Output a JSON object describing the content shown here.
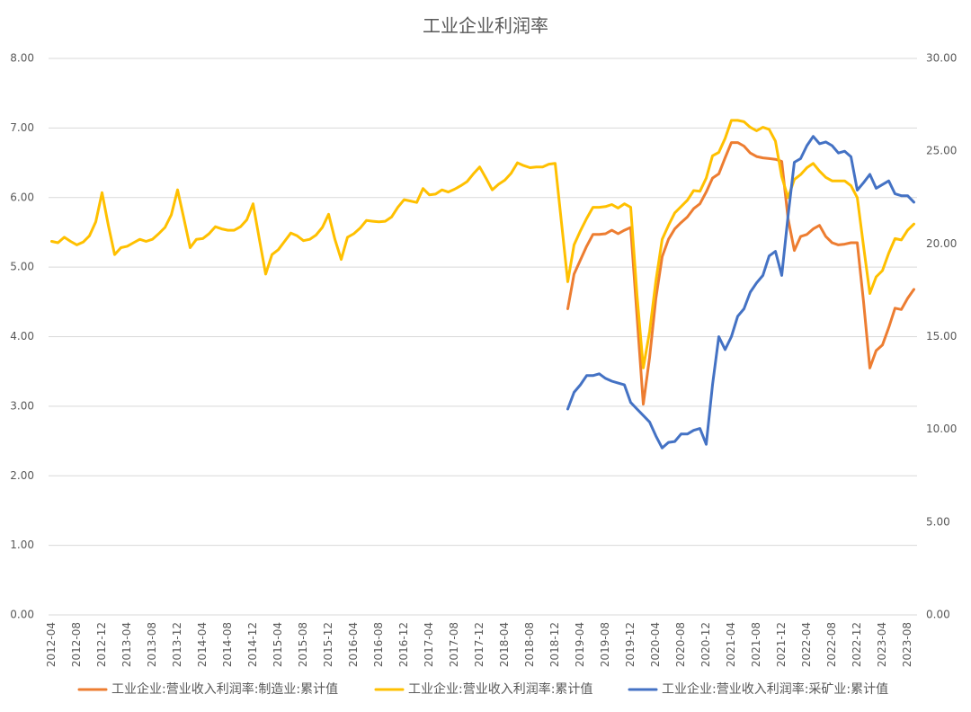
{
  "chart_data": {
    "type": "line",
    "title": "工业企业利润率",
    "categories": [
      "2012-04",
      null,
      null,
      null,
      "2012-08",
      null,
      null,
      null,
      "2012-12",
      null,
      null,
      null,
      "2013-04",
      null,
      null,
      null,
      "2013-08",
      null,
      null,
      null,
      "2013-12",
      null,
      null,
      null,
      "2014-04",
      null,
      null,
      null,
      "2014-08",
      null,
      null,
      null,
      "2014-12",
      null,
      null,
      null,
      "2015-04",
      null,
      null,
      null,
      "2015-08",
      null,
      null,
      null,
      "2015-12",
      null,
      null,
      null,
      "2016-04",
      null,
      null,
      null,
      "2016-08",
      null,
      null,
      null,
      "2016-12",
      null,
      null,
      null,
      "2017-04",
      null,
      null,
      null,
      "2017-08",
      null,
      null,
      null,
      "2017-12",
      null,
      null,
      null,
      "2018-04",
      null,
      null,
      null,
      "2018-08",
      null,
      null,
      null,
      "2018-12",
      null,
      null,
      null,
      "2019-04",
      null,
      null,
      null,
      "2019-08",
      null,
      null,
      null,
      "2019-12",
      null,
      null,
      null,
      "2020-04",
      null,
      null,
      null,
      "2020-08",
      null,
      null,
      null,
      "2020-12",
      null,
      null,
      null,
      "2021-04",
      null,
      null,
      null,
      "2021-08",
      null,
      null,
      null,
      "2021-12",
      null,
      null,
      null,
      "2022-04",
      null,
      null,
      null,
      "2022-08",
      null,
      null,
      null,
      "2022-12",
      null,
      null,
      null,
      "2023-04",
      null,
      null,
      null,
      "2023-08",
      null
    ],
    "series": [
      {
        "name": "工业企业:营业收入利润率:制造业:累计值",
        "color": "#ED7D31",
        "axis": "y",
        "values": [
          null,
          null,
          null,
          null,
          null,
          null,
          null,
          null,
          null,
          null,
          null,
          null,
          null,
          null,
          null,
          null,
          null,
          null,
          null,
          null,
          null,
          null,
          null,
          null,
          null,
          null,
          null,
          null,
          null,
          null,
          null,
          null,
          null,
          null,
          null,
          null,
          null,
          null,
          null,
          null,
          null,
          null,
          null,
          null,
          null,
          null,
          null,
          null,
          null,
          null,
          null,
          null,
          null,
          null,
          null,
          null,
          null,
          null,
          null,
          null,
          null,
          null,
          null,
          null,
          null,
          null,
          null,
          null,
          null,
          null,
          null,
          null,
          null,
          null,
          null,
          null,
          null,
          null,
          null,
          null,
          null,
          null,
          4.4,
          4.9,
          5.1,
          5.3,
          5.47,
          5.47,
          5.48,
          5.53,
          5.48,
          5.53,
          5.57,
          4.3,
          3.03,
          3.7,
          4.55,
          5.15,
          5.4,
          5.55,
          5.64,
          5.72,
          5.84,
          5.91,
          6.08,
          6.28,
          6.34,
          6.57,
          6.79,
          6.79,
          6.74,
          6.64,
          6.59,
          6.57,
          6.56,
          6.55,
          6.52,
          5.7,
          5.24,
          5.44,
          5.47,
          5.55,
          5.6,
          5.44,
          5.35,
          5.32,
          5.33,
          5.35,
          5.35,
          4.5,
          3.55,
          3.8,
          3.88,
          4.13,
          4.41,
          4.39,
          4.55,
          4.68
        ]
      },
      {
        "name": "工业企业:营业收入利润率:累计值",
        "color": "#FFC000",
        "axis": "y",
        "values": [
          5.37,
          5.35,
          5.43,
          5.37,
          5.32,
          5.36,
          5.45,
          5.65,
          6.07,
          5.6,
          5.18,
          5.28,
          5.3,
          5.35,
          5.4,
          5.37,
          5.4,
          5.48,
          5.57,
          5.75,
          6.11,
          5.7,
          5.28,
          5.4,
          5.41,
          5.48,
          5.58,
          5.55,
          5.53,
          5.53,
          5.58,
          5.68,
          5.91,
          5.4,
          4.9,
          5.18,
          5.25,
          5.37,
          5.49,
          5.45,
          5.38,
          5.4,
          5.46,
          5.57,
          5.76,
          5.4,
          5.11,
          5.43,
          5.48,
          5.56,
          5.67,
          5.66,
          5.65,
          5.66,
          5.72,
          5.86,
          5.97,
          5.95,
          5.93,
          6.13,
          6.04,
          6.05,
          6.11,
          6.08,
          6.12,
          6.17,
          6.23,
          6.34,
          6.44,
          6.28,
          6.11,
          6.19,
          6.25,
          6.35,
          6.5,
          6.46,
          6.43,
          6.44,
          6.44,
          6.48,
          6.49,
          5.64,
          4.79,
          5.32,
          5.52,
          5.7,
          5.86,
          5.86,
          5.87,
          5.9,
          5.85,
          5.91,
          5.86,
          4.6,
          3.55,
          4.07,
          4.8,
          5.4,
          5.6,
          5.78,
          5.87,
          5.96,
          6.1,
          6.09,
          6.28,
          6.6,
          6.65,
          6.85,
          7.11,
          7.11,
          7.09,
          7.01,
          6.96,
          7.01,
          6.98,
          6.81,
          6.3,
          6.0,
          6.26,
          6.33,
          6.43,
          6.49,
          6.38,
          6.29,
          6.24,
          6.24,
          6.24,
          6.17,
          6.0,
          5.3,
          4.62,
          4.86,
          4.95,
          5.2,
          5.41,
          5.39,
          5.53,
          5.62
        ]
      },
      {
        "name": "工业企业:营业收入利润率:采矿业:累计值",
        "color": "#4472C4",
        "axis": "y2",
        "values": [
          null,
          null,
          null,
          null,
          null,
          null,
          null,
          null,
          null,
          null,
          null,
          null,
          null,
          null,
          null,
          null,
          null,
          null,
          null,
          null,
          null,
          null,
          null,
          null,
          null,
          null,
          null,
          null,
          null,
          null,
          null,
          null,
          null,
          null,
          null,
          null,
          null,
          null,
          null,
          null,
          null,
          null,
          null,
          null,
          null,
          null,
          null,
          null,
          null,
          null,
          null,
          null,
          null,
          null,
          null,
          null,
          null,
          null,
          null,
          null,
          null,
          null,
          null,
          null,
          null,
          null,
          null,
          null,
          null,
          null,
          null,
          null,
          null,
          null,
          null,
          null,
          null,
          null,
          null,
          null,
          null,
          null,
          11.1,
          12.0,
          12.4,
          12.9,
          12.9,
          13.0,
          12.75,
          12.6,
          12.5,
          12.4,
          11.45,
          11.1,
          10.75,
          10.4,
          9.65,
          9.0,
          9.3,
          9.35,
          9.75,
          9.75,
          9.95,
          10.05,
          9.2,
          12.4,
          15.0,
          14.3,
          15.0,
          16.1,
          16.5,
          17.4,
          17.9,
          18.3,
          19.35,
          19.6,
          18.3,
          21.5,
          24.4,
          24.6,
          25.3,
          25.8,
          25.4,
          25.5,
          25.3,
          24.9,
          25.0,
          24.7,
          22.9,
          23.3,
          23.75,
          23.0,
          23.2,
          23.4,
          22.7,
          22.6,
          22.6,
          22.25
        ]
      }
    ],
    "ylim": [
      0,
      8
    ],
    "yticks": [
      {
        "value": 0,
        "label": "0.00"
      },
      {
        "value": 1,
        "label": "1.00"
      },
      {
        "value": 2,
        "label": "2.00"
      },
      {
        "value": 3,
        "label": "3.00"
      },
      {
        "value": 4,
        "label": "4.00"
      },
      {
        "value": 5,
        "label": "5.00"
      },
      {
        "value": 6,
        "label": "6.00"
      },
      {
        "value": 7,
        "label": "7.00"
      },
      {
        "value": 8,
        "label": "8.00"
      }
    ],
    "y2lim": [
      0,
      30
    ],
    "y2ticks": [
      {
        "value": 0,
        "label": "0.00"
      },
      {
        "value": 5,
        "label": "5.00"
      },
      {
        "value": 10,
        "label": "10.00"
      },
      {
        "value": 15,
        "label": "15.00"
      },
      {
        "value": 20,
        "label": "20.00"
      },
      {
        "value": 25,
        "label": "25.00"
      },
      {
        "value": 30,
        "label": "30.00"
      }
    ],
    "grid": true,
    "legend": "bottom"
  }
}
